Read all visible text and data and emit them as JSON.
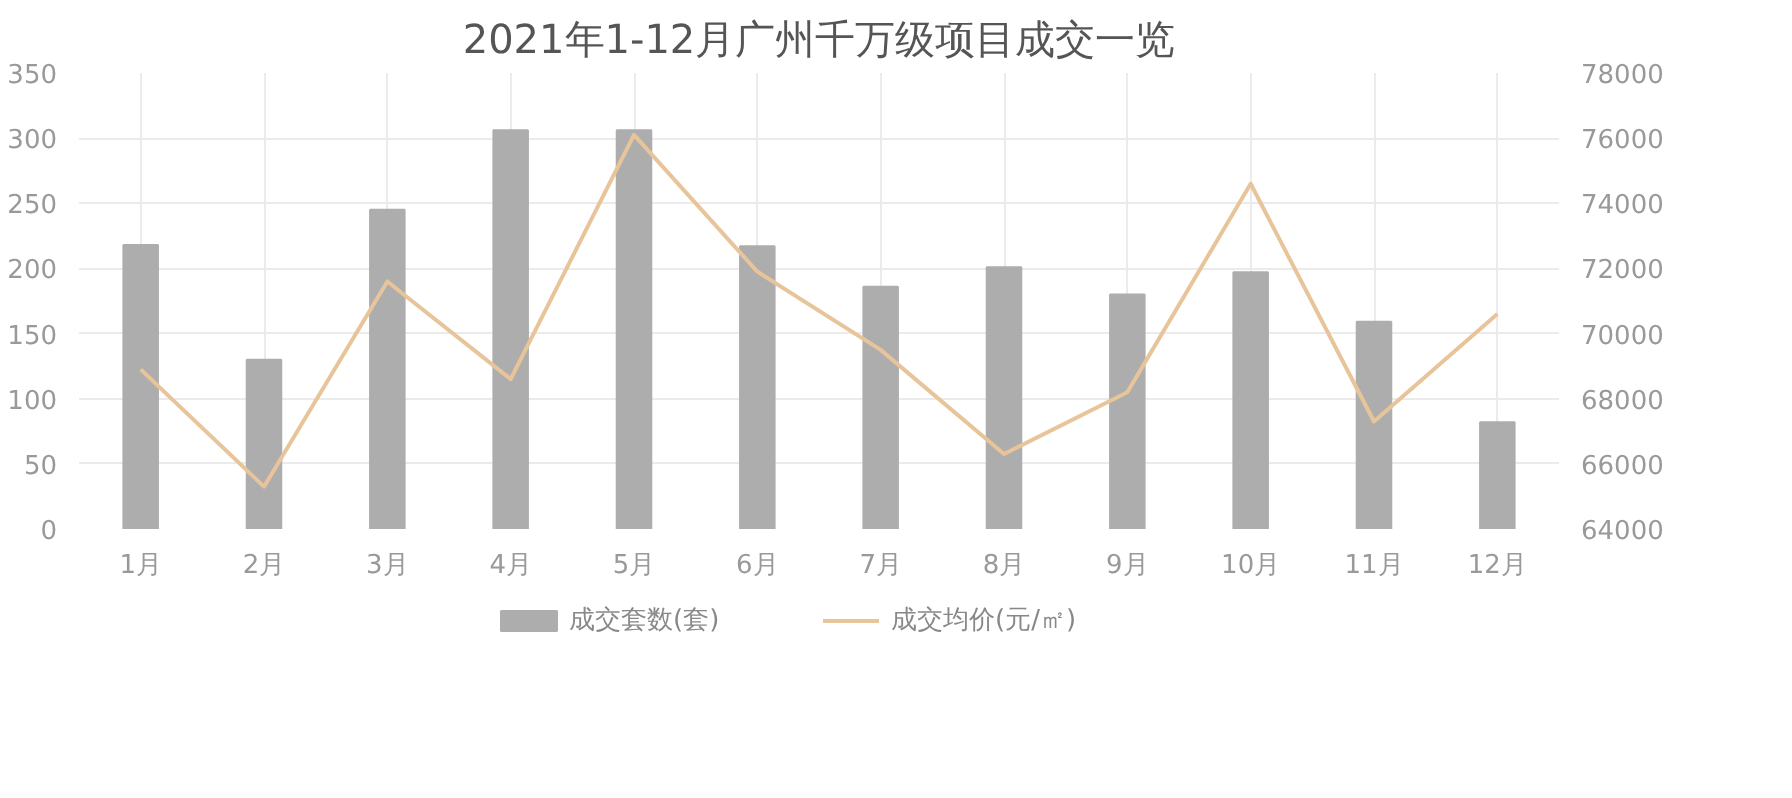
{
  "chart_data": {
    "type": "bar",
    "title": "2021年1-12月广州千万级项目成交一览",
    "categories": [
      "1月",
      "2月",
      "3月",
      "4月",
      "5月",
      "6月",
      "7月",
      "8月",
      "9月",
      "10月",
      "11月",
      "12月"
    ],
    "series": [
      {
        "name": "成交套数(套)",
        "color": "#adadad",
        "values": [
          218,
          130,
          245,
          306,
          306,
          217,
          186,
          201,
          180,
          197,
          159,
          82
        ]
      },
      {
        "name": "成交均价(元/㎡)",
        "type": "line",
        "axis": "y2",
        "color": "#e8c49a",
        "values": [
          68900,
          65300,
          71600,
          68600,
          76100,
          71900,
          69500,
          66300,
          68200,
          74600,
          67300,
          70600
        ]
      }
    ],
    "ylim": [
      0,
      350
    ],
    "yticks": [
      0,
      50,
      100,
      150,
      200,
      250,
      300,
      350
    ],
    "y2lim": [
      64000,
      78000
    ],
    "y2ticks": [
      64000,
      66000,
      68000,
      70000,
      72000,
      74000,
      76000,
      78000
    ],
    "grid": true,
    "legend": "bottom"
  }
}
